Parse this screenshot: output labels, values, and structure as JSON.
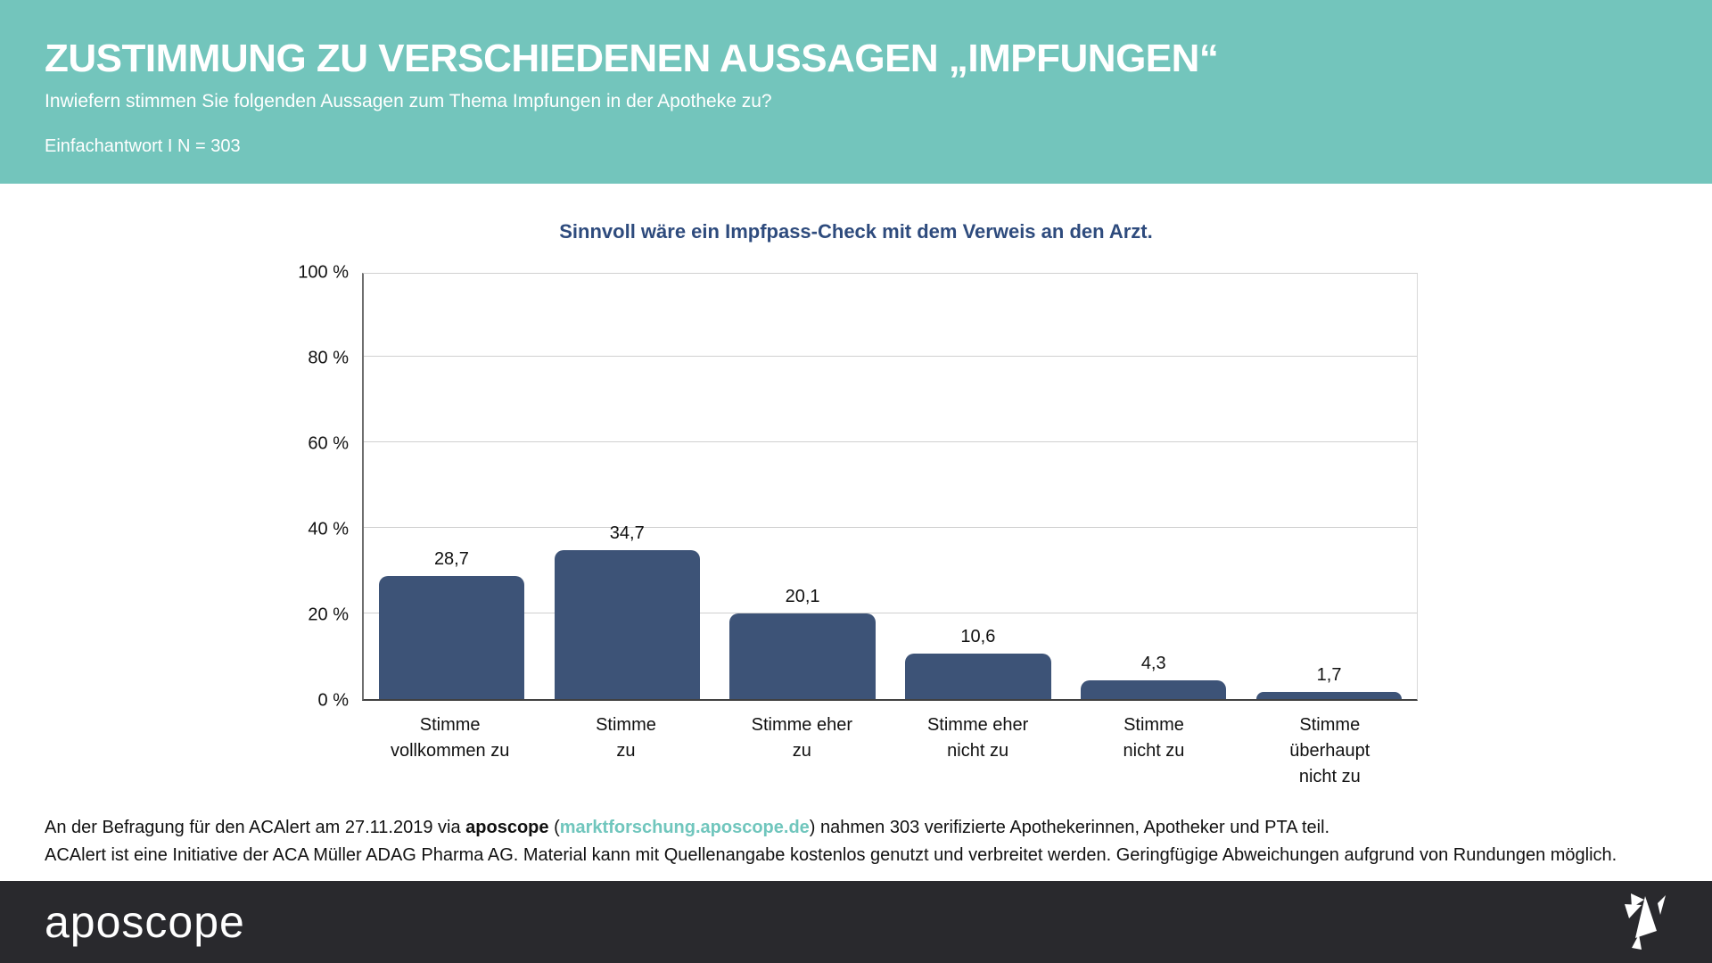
{
  "header": {
    "title": "ZUSTIMMUNG ZU VERSCHIEDENEN AUSSAGEN „IMPFUNGEN“",
    "subtitle": "Inwiefern stimmen Sie folgenden Aussagen zum Thema Impfungen in der Apotheke zu?",
    "meta": "Einfachantwort I N = 303"
  },
  "chart_data": {
    "type": "bar",
    "title": "Sinnvoll wäre ein Impfpass-Check mit dem Verweis an den Arzt.",
    "categories": [
      [
        "Stimme",
        "vollkommen zu"
      ],
      [
        "Stimme",
        "zu"
      ],
      [
        "Stimme eher",
        "zu"
      ],
      [
        "Stimme eher",
        "nicht zu"
      ],
      [
        "Stimme",
        "nicht zu"
      ],
      [
        "Stimme",
        "überhaupt",
        "nicht zu"
      ]
    ],
    "values": [
      28.7,
      34.7,
      20.1,
      10.6,
      4.3,
      1.7
    ],
    "value_labels": [
      "28,7",
      "34,7",
      "20,1",
      "10,6",
      "4,3",
      "1,7"
    ],
    "y_ticks": [
      "100 %",
      "80 %",
      "60 %",
      "40 %",
      "20 %",
      "0 %"
    ],
    "y_tick_values": [
      100,
      80,
      60,
      40,
      20,
      0
    ],
    "ylim": [
      0,
      100
    ],
    "grid": true,
    "legend": "none",
    "xlabel": "",
    "ylabel": ""
  },
  "footnote": {
    "line1_prefix": "An der Befragung für den ACAlert am 27.11.2019 via ",
    "line1_brand": "aposcope",
    "line1_mid": " (",
    "line1_link": "marktforschung.aposcope.de",
    "line1_suffix": ") nahmen 303 verifizierte Apothekerinnen, Apotheker und PTA teil.",
    "line2": "ACAlert ist eine Initiative der ACA Müller ADAG Pharma AG. Material kann mit Quellenangabe kostenlos genutzt und verbreitet werden. Geringfügige Abweichungen aufgrund von Rundungen möglich."
  },
  "footer": {
    "logo_text": "aposcope",
    "logo_icon": "origami-bird-icon"
  },
  "colors": {
    "header_bg": "#73c5bc",
    "bar": "#3d5377",
    "chart_title": "#2e4b7d",
    "link": "#70c6bd",
    "footer_bg": "#29292d",
    "gridline": "#d0d0d0"
  }
}
